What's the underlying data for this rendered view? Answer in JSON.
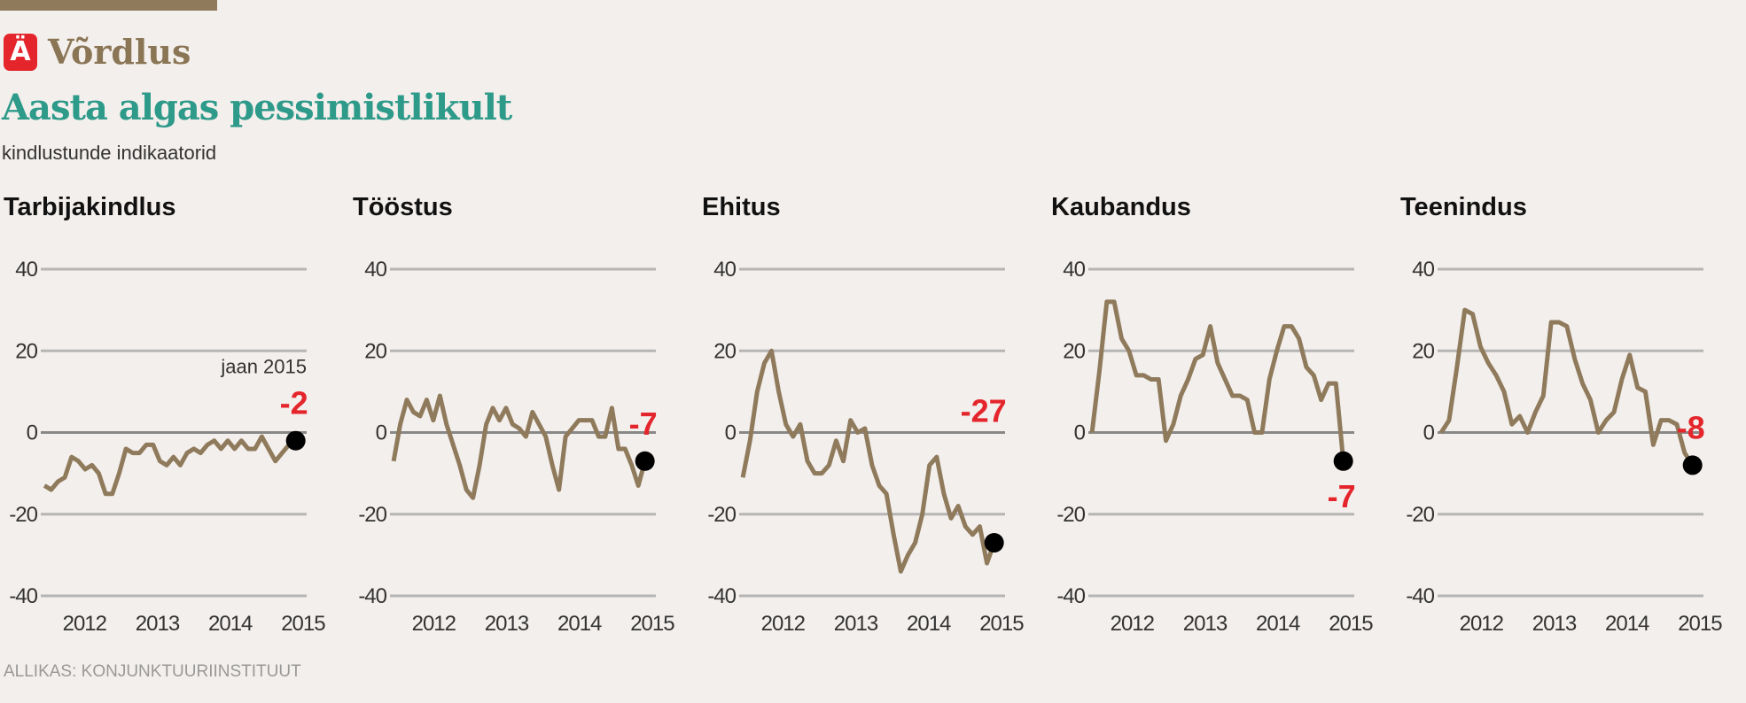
{
  "header": {
    "badge": "Ä",
    "kicker": "Võrdlus",
    "title": "Aasta algas pessimistlikult",
    "subtitle": "kindlustunde indikaatorid"
  },
  "source": "ALLIKAS: KONJUNKTUURIINSTITUUT",
  "colors": {
    "line": "#8f7a5c",
    "accent": "#e4262c",
    "title": "#2e9a8a",
    "grid": "#b5b5b5"
  },
  "chart_data": [
    {
      "type": "line",
      "title": "Tarbijakindlus",
      "ylim": [
        -40,
        40
      ],
      "yticks": [
        "40",
        "20",
        "0",
        "-20",
        "-40"
      ],
      "xticks": [
        "2012",
        "2013",
        "2014",
        "2015"
      ],
      "xlim": [
        2011.55,
        2015.2
      ],
      "x_start": 2011.6,
      "x_end": 2015.05,
      "values": [
        -13,
        -14,
        -12,
        -11,
        -6,
        -7,
        -9,
        -8,
        -10,
        -15,
        -15,
        -10,
        -4,
        -5,
        -5,
        -3,
        -3,
        -7,
        -8,
        -6,
        -8,
        -5,
        -4,
        -5,
        -3,
        -2,
        -4,
        -2,
        -4,
        -2,
        -4,
        -4,
        -1,
        -4,
        -7,
        -5,
        -3,
        -2
      ],
      "last_value_label": "-2",
      "annotation": "jaan 2015",
      "label_pos": "above"
    },
    {
      "type": "line",
      "title": "Tööstus",
      "ylim": [
        -40,
        40
      ],
      "yticks": [
        "40",
        "20",
        "0",
        "-20",
        "-40"
      ],
      "xticks": [
        "2012",
        "2013",
        "2014",
        "2015"
      ],
      "xlim": [
        2011.55,
        2015.2
      ],
      "x_start": 2011.6,
      "x_end": 2015.05,
      "values": [
        -7,
        2,
        8,
        5,
        4,
        8,
        3,
        9,
        2,
        -3,
        -8,
        -14,
        -16,
        -8,
        2,
        6,
        3,
        6,
        2,
        1,
        -1,
        5,
        2,
        -1,
        -8,
        -14,
        -1,
        1,
        3,
        3,
        3,
        -1,
        -1,
        6,
        -4,
        -4,
        -8,
        -13,
        -7
      ],
      "last_value_label": "-7",
      "label_pos": "above"
    },
    {
      "type": "line",
      "title": "Ehitus",
      "ylim": [
        -40,
        40
      ],
      "yticks": [
        "40",
        "20",
        "0",
        "-20",
        "-40"
      ],
      "xticks": [
        "2012",
        "2013",
        "2014",
        "2015"
      ],
      "xlim": [
        2011.55,
        2015.2
      ],
      "x_start": 2011.6,
      "x_end": 2015.05,
      "values": [
        -11,
        -2,
        10,
        17,
        20,
        10,
        2,
        -1,
        2,
        -7,
        -10,
        -10,
        -8,
        -2,
        -7,
        3,
        0,
        1,
        -8,
        -13,
        -15,
        -25,
        -34,
        -30,
        -27,
        -20,
        -8,
        -6,
        -15,
        -21,
        -18,
        -23,
        -25,
        -23,
        -32,
        -27
      ],
      "last_value_label": "-27",
      "label_pos": "high"
    },
    {
      "type": "line",
      "title": "Kaubandus",
      "ylim": [
        -40,
        40
      ],
      "yticks": [
        "40",
        "20",
        "0",
        "-20",
        "-40"
      ],
      "xticks": [
        "2012",
        "2013",
        "2014",
        "2015"
      ],
      "xlim": [
        2011.55,
        2015.2
      ],
      "x_start": 2011.6,
      "x_end": 2015.05,
      "values": [
        0,
        15,
        32,
        32,
        23,
        20,
        14,
        14,
        13,
        13,
        -2,
        2,
        9,
        13,
        18,
        19,
        26,
        17,
        13,
        9,
        9,
        8,
        0,
        0,
        13,
        20,
        26,
        26,
        23,
        16,
        14,
        8,
        12,
        12,
        -7
      ],
      "last_value_label": "-7",
      "label_pos": "below"
    },
    {
      "type": "line",
      "title": "Teenindus",
      "ylim": [
        -40,
        40
      ],
      "yticks": [
        "40",
        "20",
        "0",
        "-20",
        "-40"
      ],
      "xticks": [
        "2012",
        "2013",
        "2014",
        "2015"
      ],
      "xlim": [
        2011.55,
        2015.2
      ],
      "x_start": 2011.6,
      "x_end": 2015.05,
      "values": [
        0,
        3,
        16,
        30,
        29,
        21,
        17,
        14,
        10,
        2,
        4,
        0,
        5,
        9,
        27,
        27,
        26,
        18,
        12,
        8,
        0,
        3,
        5,
        13,
        19,
        11,
        10,
        -3,
        3,
        3,
        2,
        -5,
        -8
      ],
      "last_value_label": "-8",
      "label_pos": "above"
    }
  ]
}
